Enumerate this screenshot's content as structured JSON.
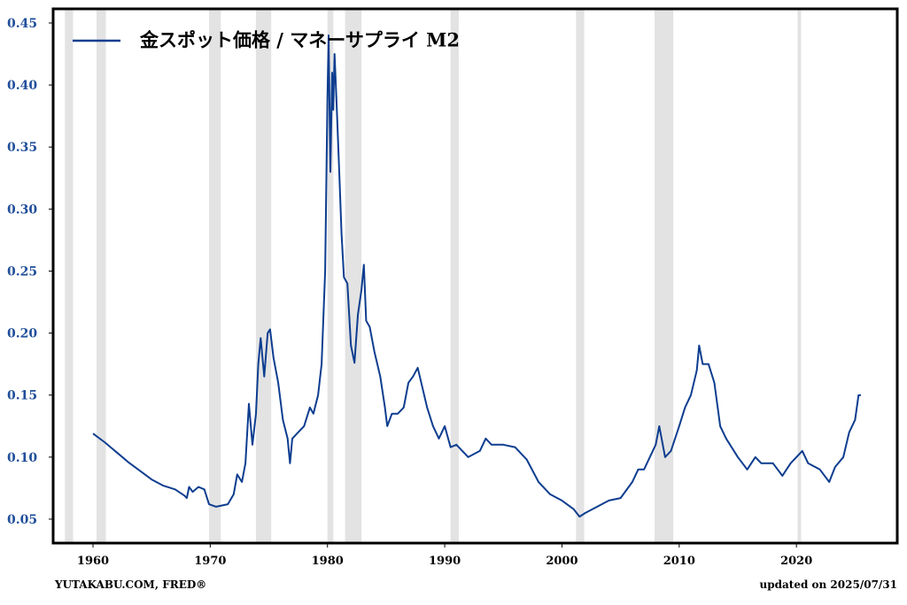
{
  "chart_data": {
    "type": "line",
    "legend_label": "金スポット価格 / マネーサプライ M2",
    "legend_position": "upper left",
    "source": "YUTAKABU.COM, FRED®",
    "updated": "updated on 2025/07/31",
    "color": "#0d3d8f",
    "shade_color": "#e3e3e3",
    "shaded_periods": [
      [
        1957.6,
        1958.3
      ],
      [
        1960.3,
        1961.1
      ],
      [
        1969.9,
        1970.9
      ],
      [
        1973.9,
        1975.2
      ],
      [
        1980.0,
        1980.5
      ],
      [
        1981.5,
        1982.9
      ],
      [
        1990.5,
        1991.2
      ],
      [
        2001.2,
        2001.9
      ],
      [
        2007.9,
        2009.5
      ],
      [
        2020.1,
        2020.4
      ]
    ],
    "x": [
      1960.0,
      1961.0,
      1962.0,
      1963.0,
      1964.0,
      1965.0,
      1966.0,
      1967.0,
      1967.8,
      1968.0,
      1968.2,
      1968.5,
      1969.0,
      1969.5,
      1969.9,
      1970.5,
      1971.0,
      1971.5,
      1972.0,
      1972.3,
      1972.7,
      1973.0,
      1973.3,
      1973.6,
      1973.9,
      1974.1,
      1974.3,
      1974.6,
      1974.9,
      1975.1,
      1975.4,
      1975.8,
      1976.2,
      1976.6,
      1976.8,
      1977.0,
      1977.5,
      1978.0,
      1978.5,
      1978.8,
      1979.2,
      1979.5,
      1979.8,
      1980.0,
      1980.1,
      1980.25,
      1980.4,
      1980.5,
      1980.6,
      1980.8,
      1981.0,
      1981.2,
      1981.4,
      1981.7,
      1982.0,
      1982.3,
      1982.6,
      1982.9,
      1983.1,
      1983.3,
      1983.6,
      1984.0,
      1984.5,
      1984.9,
      1985.1,
      1985.5,
      1986.0,
      1986.5,
      1986.9,
      1987.3,
      1987.7,
      1988.0,
      1988.5,
      1989.0,
      1989.5,
      1990.0,
      1990.5,
      1991.0,
      1992.0,
      1993.0,
      1993.5,
      1994.0,
      1995.0,
      1996.0,
      1997.0,
      1998.0,
      1999.0,
      2000.0,
      2001.0,
      2001.5,
      2002.0,
      2003.0,
      2004.0,
      2005.0,
      2006.0,
      2006.5,
      2007.0,
      2008.0,
      2008.3,
      2008.8,
      2009.3,
      2010.0,
      2010.5,
      2011.0,
      2011.5,
      2011.7,
      2012.0,
      2012.5,
      2013.0,
      2013.5,
      2014.0,
      2015.0,
      2015.8,
      2016.5,
      2017.0,
      2018.0,
      2018.8,
      2019.5,
      2020.5,
      2021.0,
      2022.0,
      2022.8,
      2023.3,
      2024.0,
      2024.5,
      2025.0,
      2025.3,
      2025.5
    ],
    "values": [
      0.119,
      0.112,
      0.104,
      0.096,
      0.089,
      0.082,
      0.077,
      0.074,
      0.069,
      0.067,
      0.076,
      0.072,
      0.076,
      0.074,
      0.062,
      0.06,
      0.061,
      0.062,
      0.07,
      0.086,
      0.08,
      0.095,
      0.143,
      0.11,
      0.135,
      0.175,
      0.196,
      0.165,
      0.2,
      0.203,
      0.18,
      0.16,
      0.13,
      0.115,
      0.095,
      0.115,
      0.12,
      0.125,
      0.14,
      0.135,
      0.15,
      0.175,
      0.25,
      0.39,
      0.44,
      0.33,
      0.41,
      0.38,
      0.425,
      0.38,
      0.33,
      0.28,
      0.245,
      0.24,
      0.19,
      0.176,
      0.215,
      0.235,
      0.255,
      0.21,
      0.205,
      0.185,
      0.165,
      0.14,
      0.125,
      0.135,
      0.135,
      0.14,
      0.16,
      0.165,
      0.172,
      0.16,
      0.14,
      0.125,
      0.115,
      0.125,
      0.108,
      0.11,
      0.1,
      0.105,
      0.115,
      0.11,
      0.11,
      0.108,
      0.098,
      0.08,
      0.07,
      0.065,
      0.058,
      0.052,
      0.055,
      0.06,
      0.065,
      0.067,
      0.08,
      0.09,
      0.09,
      0.11,
      0.125,
      0.1,
      0.105,
      0.125,
      0.14,
      0.15,
      0.17,
      0.19,
      0.175,
      0.175,
      0.16,
      0.125,
      0.115,
      0.1,
      0.09,
      0.1,
      0.095,
      0.095,
      0.085,
      0.095,
      0.105,
      0.095,
      0.09,
      0.08,
      0.092,
      0.1,
      0.12,
      0.13,
      0.15,
      0.15
    ],
    "xlim": [
      1956.6,
      2028.6
    ],
    "ylim": [
      0.0307,
      0.4614
    ],
    "xticks": [
      1960,
      1970,
      1980,
      1990,
      2000,
      2010,
      2020
    ],
    "yticks": [
      0.05,
      {
        "value": 0.1,
        "label": "0.10"
      },
      0.15,
      {
        "value": 0.2,
        "label": "0.20"
      },
      0.25,
      {
        "value": 0.3,
        "label": "0.30"
      },
      0.35,
      {
        "value": 0.4,
        "label": "0.40"
      },
      0.45
    ]
  }
}
